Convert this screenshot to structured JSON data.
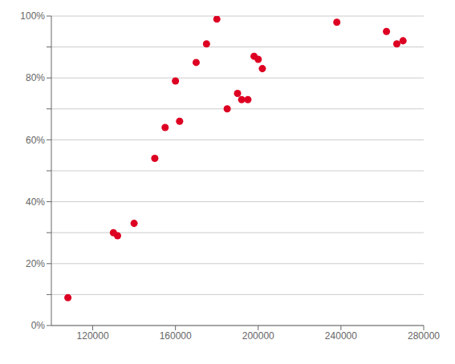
{
  "chart_data": {
    "type": "scatter",
    "x": [
      108000,
      130000,
      132000,
      140000,
      150000,
      155000,
      160000,
      162000,
      170000,
      175000,
      180000,
      185000,
      190000,
      192000,
      195000,
      198000,
      200000,
      202000,
      238000,
      262000,
      267000,
      270000
    ],
    "values": [
      0.09,
      0.3,
      0.29,
      0.33,
      0.54,
      0.64,
      0.79,
      0.66,
      0.85,
      0.91,
      0.99,
      0.7,
      0.75,
      0.73,
      0.73,
      0.87,
      0.86,
      0.83,
      0.98,
      0.95,
      0.91,
      0.92
    ],
    "color": "#dd0022",
    "xlim": [
      100000,
      280000
    ],
    "xticks": [
      120000,
      160000,
      200000,
      240000,
      280000
    ],
    "ylim": [
      0.0,
      1.0
    ],
    "yticks": [
      {
        "value": 0.0,
        "label": "0%"
      },
      {
        "value": 0.1,
        "label": null
      },
      {
        "value": 0.2,
        "label": "20%"
      },
      {
        "value": 0.3,
        "label": null
      },
      {
        "value": 0.4,
        "label": "40%"
      },
      {
        "value": 0.5,
        "label": null
      },
      {
        "value": 0.6,
        "label": "60%"
      },
      {
        "value": 0.7,
        "label": null
      },
      {
        "value": 0.8,
        "label": "80%"
      },
      {
        "value": 0.9,
        "label": null
      },
      {
        "value": 1.0,
        "label": "100%"
      }
    ],
    "grid": true
  }
}
